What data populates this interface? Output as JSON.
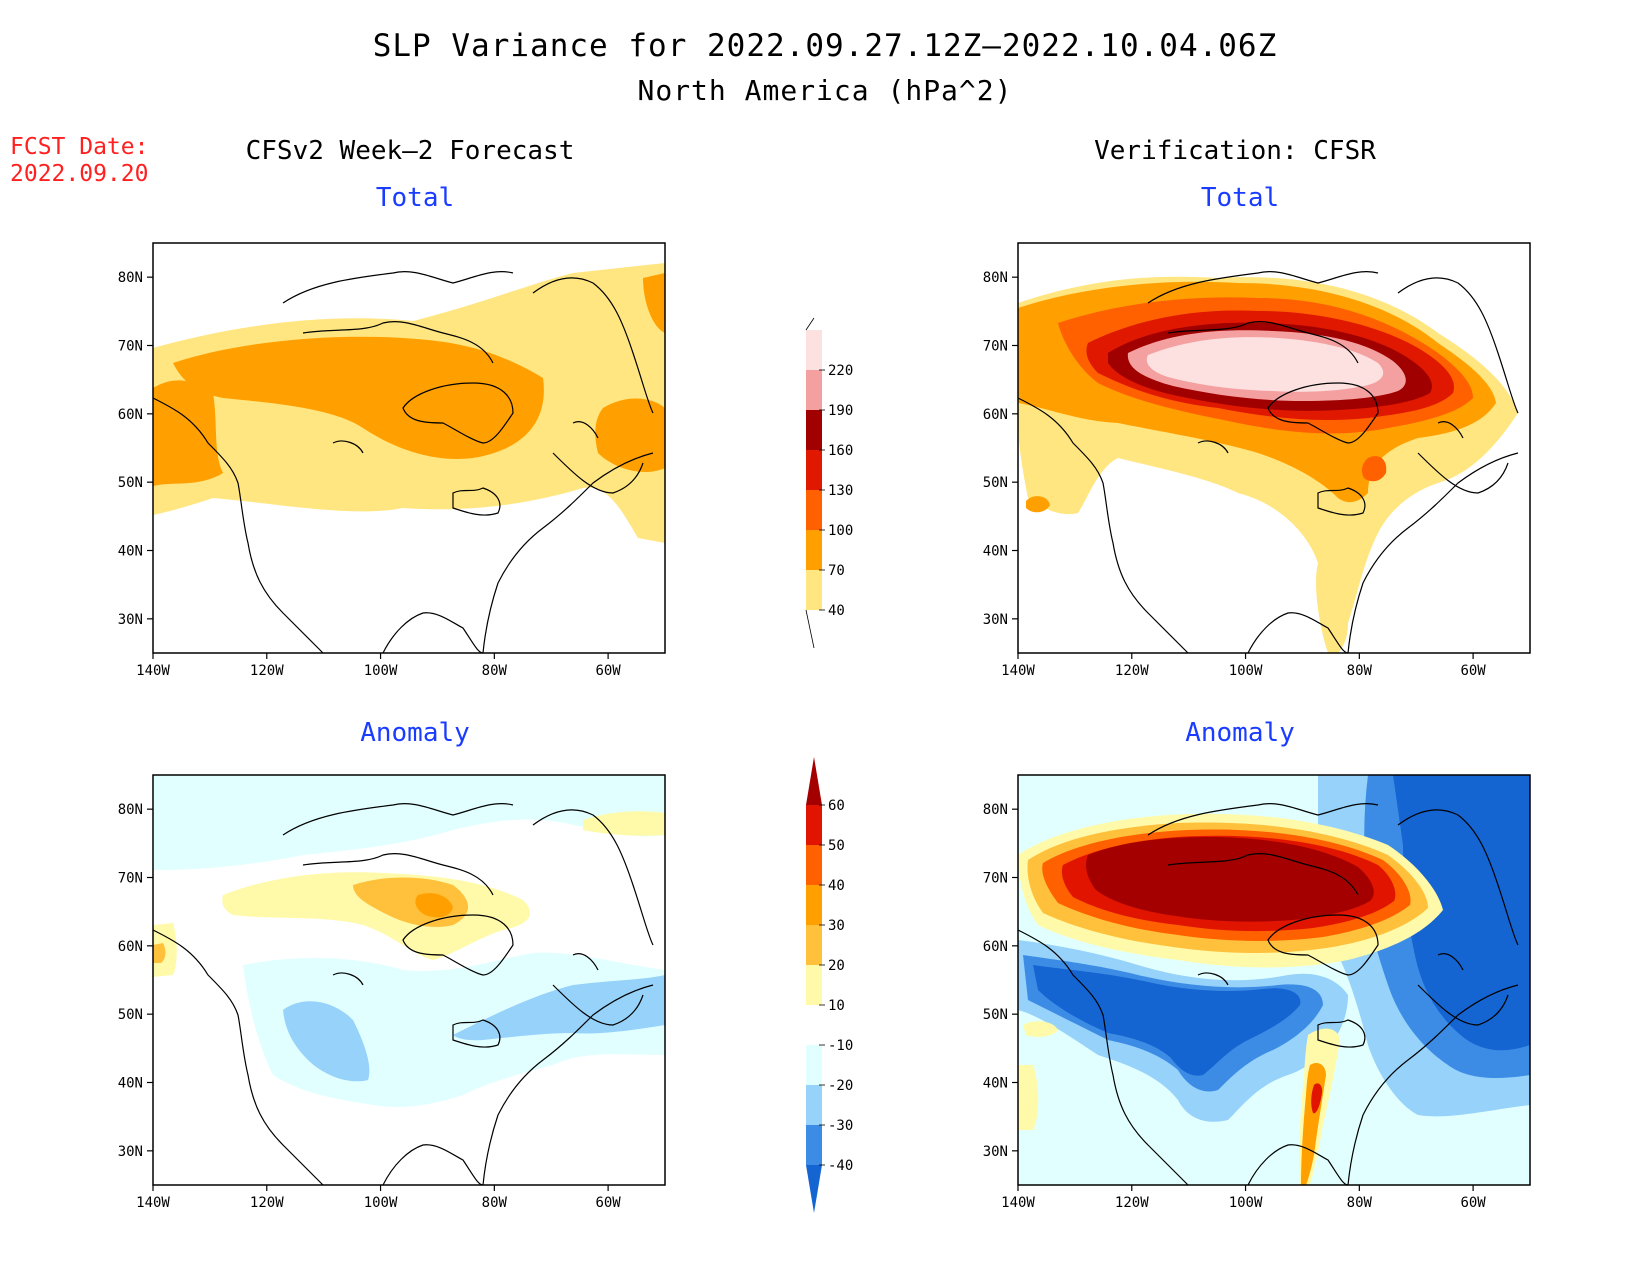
{
  "title": {
    "line1": "SLP Variance for 2022.09.27.12Z–2022.10.04.06Z",
    "line2": "North America (hPa^2)"
  },
  "forecast_date": {
    "label": "FCST Date:",
    "value": "2022.09.20"
  },
  "columns": {
    "left_title": "CFSv2 Week–2 Forecast",
    "right_title": "Verification: CFSR"
  },
  "panel_titles": {
    "total": "Total",
    "anomaly": "Anomaly"
  },
  "axes": {
    "lat_labels": [
      "80N",
      "70N",
      "60N",
      "50N",
      "40N",
      "30N"
    ],
    "lat_values": [
      80,
      70,
      60,
      50,
      40,
      30
    ],
    "lon_labels": [
      "140W",
      "120W",
      "100W",
      "80W",
      "60W"
    ],
    "lon_values": [
      -140,
      -120,
      -100,
      -80,
      -60
    ],
    "lat_range": [
      25,
      85
    ],
    "lon_range": [
      -140,
      -50
    ]
  },
  "colorbars": {
    "total": {
      "levels": [
        "40",
        "70",
        "100",
        "130",
        "160",
        "190",
        "220"
      ],
      "colors": [
        "#ffe680",
        "#ffa000",
        "#ff6000",
        "#e01800",
        "#a00000",
        "#f4a0a0",
        "#fde0e0"
      ]
    },
    "anomaly": {
      "levels": [
        "-40",
        "-30",
        "-20",
        "-10",
        "10",
        "20",
        "30",
        "40",
        "50",
        "60"
      ],
      "colors": [
        "#1464d2",
        "#3c8ce6",
        "#96d2fa",
        "#e1ffff",
        "#ffffff",
        "#fffaaa",
        "#ffc03c",
        "#ffa000",
        "#ff6000",
        "#e11400",
        "#a50000"
      ]
    }
  },
  "map_colors": {
    "t1": "#ffe680",
    "t2": "#ffa000",
    "t3": "#ff6000",
    "t4": "#e01800",
    "t5": "#a00000",
    "t6": "#f4a0a0",
    "t7": "#fde0e0",
    "a_n4": "#1464d2",
    "a_n3": "#3c8ce6",
    "a_n2": "#96d2fa",
    "a_n1": "#e1ffff",
    "a_p1": "#fffaaa",
    "a_p2": "#ffc03c",
    "a_p3": "#ffa000",
    "a_p4": "#ff6000",
    "a_p5": "#e11400",
    "a_p6": "#a50000"
  }
}
